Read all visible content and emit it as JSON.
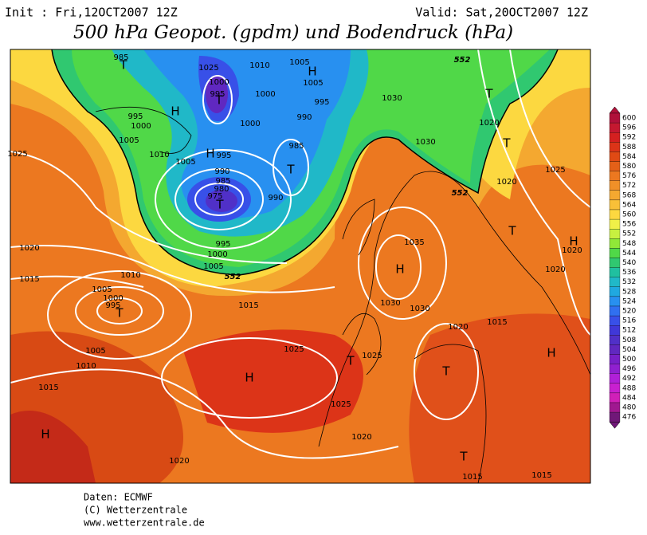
{
  "header": {
    "init": "Init : Fri,12OCT2007 12Z",
    "valid": "Valid: Sat,20OCT2007 12Z",
    "title": "500 hPa Geopot. (gpdm) und Bodendruck (hPa)"
  },
  "colorbar": {
    "levels": [
      600,
      596,
      592,
      588,
      584,
      580,
      576,
      572,
      568,
      564,
      560,
      556,
      552,
      548,
      544,
      540,
      536,
      532,
      528,
      524,
      520,
      516,
      512,
      508,
      504,
      500,
      496,
      492,
      488,
      484,
      480,
      476
    ],
    "colors": [
      "#b0103a",
      "#c41830",
      "#d42020",
      "#dc3418",
      "#e04a14",
      "#e46018",
      "#ec7820",
      "#f09028",
      "#f4a830",
      "#f8c038",
      "#fcd840",
      "#f0f048",
      "#c8f040",
      "#90e838",
      "#50d848",
      "#30c870",
      "#20c0a0",
      "#20b8c8",
      "#20a8e0",
      "#2890f0",
      "#3070f0",
      "#3850e8",
      "#4038d8",
      "#5030c8",
      "#6028c0",
      "#7820c8",
      "#9020d0",
      "#b020d8",
      "#c820d0",
      "#d020b8",
      "#a01890",
      "#701878"
    ]
  },
  "map": {
    "isobar_labels": [
      985,
      1025,
      1010,
      1005,
      1000,
      995,
      1000,
      1005,
      995,
      990,
      1000,
      985,
      995,
      1000,
      1005,
      1010,
      1005,
      995,
      990,
      985,
      980,
      975,
      990,
      995,
      1000,
      1005,
      1025,
      1020,
      1015,
      1010,
      1005,
      1000,
      995,
      1005,
      1010,
      1015,
      1015,
      1025,
      1025,
      1025,
      1020,
      1020,
      1030,
      1030,
      1035,
      1030,
      1030,
      1020,
      1015,
      1015,
      1015,
      1020,
      1020,
      1025,
      1020,
      1020
    ],
    "contour_labels": [
      552,
      552,
      552
    ],
    "centers": [
      "T",
      "H",
      "T",
      "H",
      "T",
      "H",
      "T",
      "T",
      "T",
      "T",
      "H",
      "H",
      "T",
      "H",
      "T",
      "T",
      "H",
      "H",
      "T"
    ]
  },
  "footer": [
    "Daten: ECMWF",
    "(C) Wetterzentrale",
    "www.wetterzentrale.de"
  ]
}
